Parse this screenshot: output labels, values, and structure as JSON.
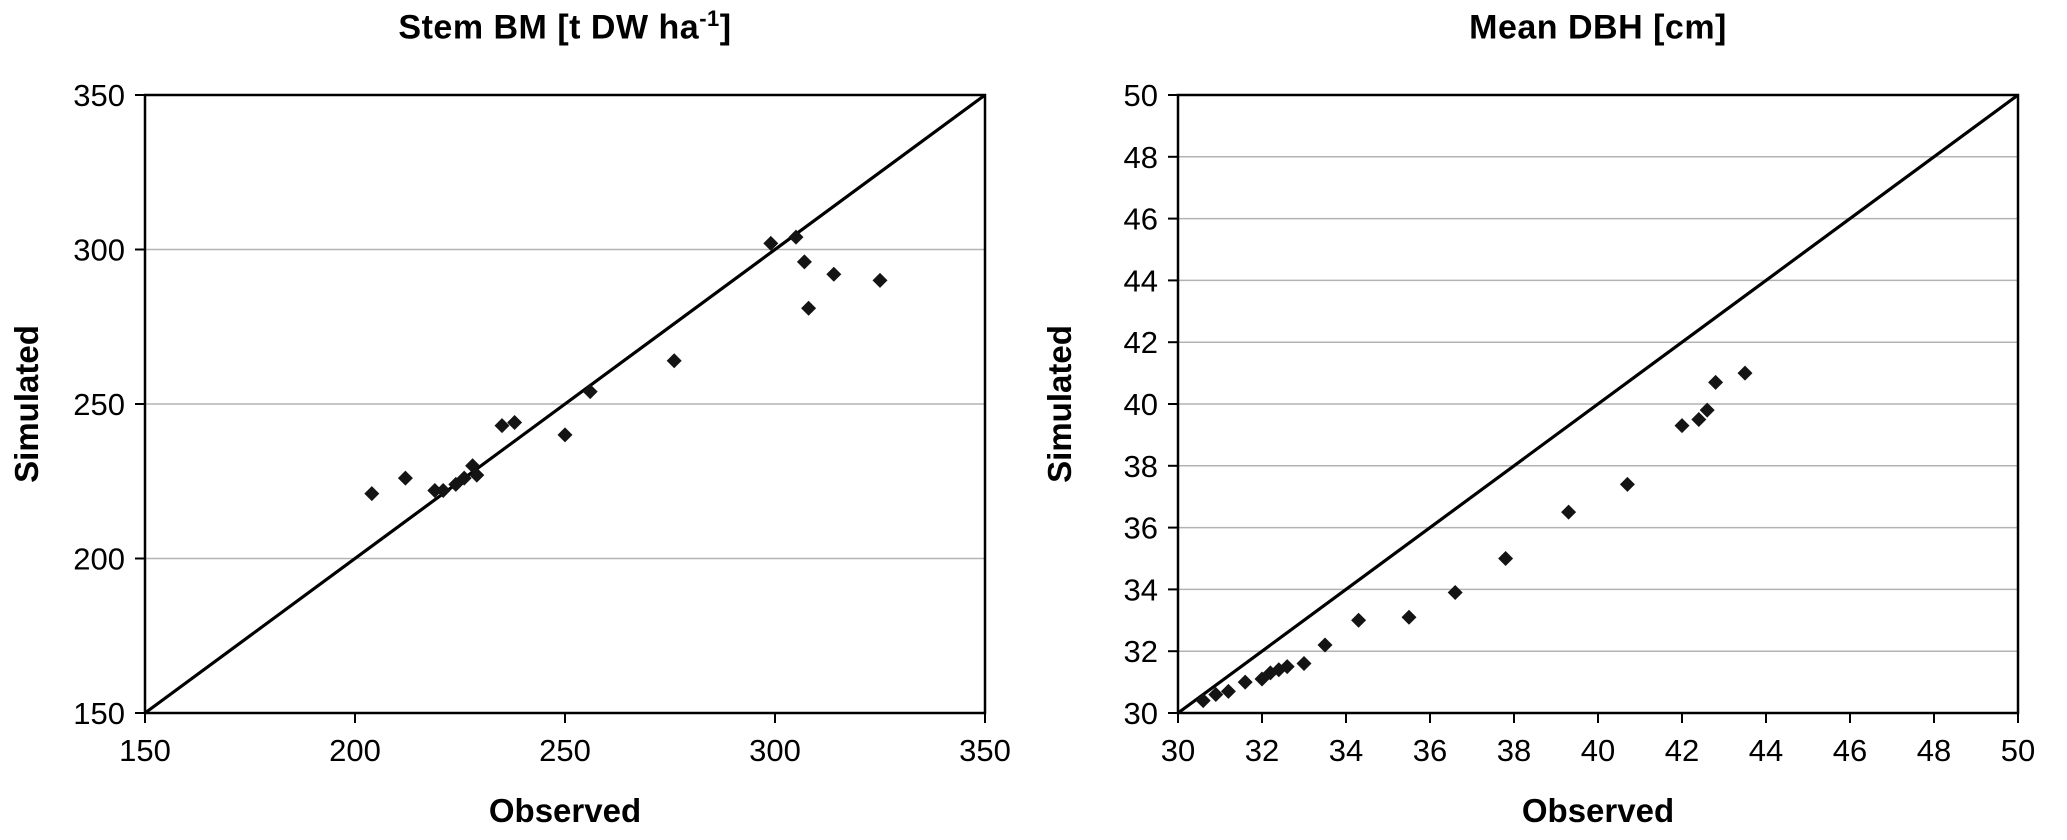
{
  "figure": {
    "background": "#ffffff"
  },
  "chart_data": [
    {
      "type": "scatter",
      "title": "Stem BM [t DW ha⁻¹]",
      "title_main": "Stem BM [t DW ha",
      "title_sup": "-1",
      "title_close": "]",
      "xlabel": "Observed",
      "ylabel": "Simulated",
      "xlim": [
        150,
        350
      ],
      "ylim": [
        150,
        350
      ],
      "xticks": [
        150,
        200,
        250,
        300,
        350
      ],
      "yticks": [
        150,
        200,
        250,
        300,
        350
      ],
      "grid": "horizontal",
      "legend": "none",
      "identity_line": true,
      "marker": "diamond",
      "marker_color": "#141414",
      "axis_color": "#000000",
      "grid_color": "#b3b3b3",
      "points": [
        [
          204,
          221
        ],
        [
          212,
          226
        ],
        [
          219,
          222
        ],
        [
          221,
          222
        ],
        [
          224,
          224
        ],
        [
          226,
          226
        ],
        [
          228,
          230
        ],
        [
          229,
          227
        ],
        [
          235,
          243
        ],
        [
          238,
          244
        ],
        [
          250,
          240
        ],
        [
          256,
          254
        ],
        [
          276,
          264
        ],
        [
          299,
          302
        ],
        [
          305,
          304
        ],
        [
          307,
          296
        ],
        [
          308,
          281
        ],
        [
          314,
          292
        ],
        [
          325,
          290
        ]
      ]
    },
    {
      "type": "scatter",
      "title": "Mean DBH [cm]",
      "title_main": "Mean DBH [cm]",
      "title_sup": "",
      "title_close": "",
      "xlabel": "Observed",
      "ylabel": "Simulated",
      "xlim": [
        30,
        50
      ],
      "ylim": [
        30,
        50
      ],
      "xticks": [
        30,
        32,
        34,
        36,
        38,
        40,
        42,
        44,
        46,
        48,
        50
      ],
      "yticks": [
        30,
        32,
        34,
        36,
        38,
        40,
        42,
        44,
        46,
        48,
        50
      ],
      "grid": "horizontal",
      "legend": "none",
      "identity_line": true,
      "marker": "diamond",
      "marker_color": "#141414",
      "axis_color": "#000000",
      "grid_color": "#b3b3b3",
      "points": [
        [
          30.6,
          30.4
        ],
        [
          30.9,
          30.6
        ],
        [
          31.2,
          30.7
        ],
        [
          31.6,
          31.0
        ],
        [
          32.0,
          31.1
        ],
        [
          32.2,
          31.3
        ],
        [
          32.4,
          31.4
        ],
        [
          32.6,
          31.5
        ],
        [
          33.0,
          31.6
        ],
        [
          33.5,
          32.2
        ],
        [
          34.3,
          33.0
        ],
        [
          35.5,
          33.1
        ],
        [
          36.6,
          33.9
        ],
        [
          37.8,
          35.0
        ],
        [
          39.3,
          36.5
        ],
        [
          40.7,
          37.4
        ],
        [
          42.0,
          39.3
        ],
        [
          42.4,
          39.5
        ],
        [
          42.6,
          39.8
        ],
        [
          42.8,
          40.7
        ],
        [
          43.5,
          41.0
        ]
      ]
    }
  ]
}
